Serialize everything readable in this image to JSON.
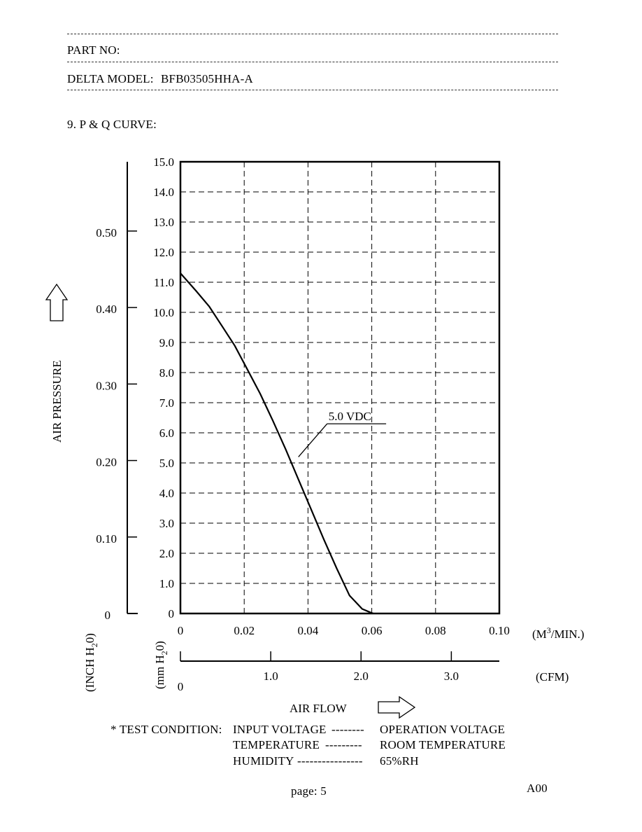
{
  "header": {
    "part_no_label": "PART NO:",
    "model_label": "DELTA MODEL:",
    "model_value": "BFB03505HHA-A",
    "section_title": "9. P & Q CURVE:"
  },
  "chart_data": {
    "type": "line",
    "title": "",
    "xlabel": "AIR FLOW",
    "ylabel": "AIR PRESSURE",
    "x_unit": "(M³/MIN.)",
    "x_unit_parts": [
      "(M",
      "3",
      "/MIN.)"
    ],
    "x2_unit": "(CFM)",
    "y_unit_inch": "(INCH H₂0)",
    "y_unit_inch_parts": [
      "(INCH H",
      "2",
      "0)"
    ],
    "y_unit_mm": "(mm H₂0)",
    "y_unit_mm_parts": [
      "(mm H",
      "2",
      "0)"
    ],
    "xlim": [
      0,
      0.1
    ],
    "ylim": [
      0,
      15.0
    ],
    "grid": true,
    "x_ticks": [
      "0",
      "0.02",
      "0.04",
      "0.06",
      "0.08",
      "0.10"
    ],
    "y_ticks": [
      "0",
      "1.0",
      "2.0",
      "3.0",
      "4.0",
      "5.0",
      "6.0",
      "7.0",
      "8.0",
      "9.0",
      "10.0",
      "11.0",
      "12.0",
      "13.0",
      "14.0",
      "15.0"
    ],
    "y_ticks_inch": [
      {
        "label": "0",
        "value": 0
      },
      {
        "label": "0.10",
        "value": 0.1
      },
      {
        "label": "0.20",
        "value": 0.2
      },
      {
        "label": "0.30",
        "value": 0.3
      },
      {
        "label": "0.40",
        "value": 0.4
      },
      {
        "label": "0.50",
        "value": 0.5
      }
    ],
    "x_ticks_cfm": [
      {
        "label": "0",
        "value": 0
      },
      {
        "label": "1.0",
        "value": 1.0
      },
      {
        "label": "2.0",
        "value": 2.0
      },
      {
        "label": "3.0",
        "value": 3.0
      }
    ],
    "series": [
      {
        "name": "5.0 VDC",
        "x": [
          0,
          0.005,
          0.009,
          0.013,
          0.017,
          0.021,
          0.025,
          0.029,
          0.033,
          0.037,
          0.041,
          0.045,
          0.049,
          0.053,
          0.057,
          0.0595,
          0.0605
        ],
        "y": [
          11.3,
          10.7,
          10.2,
          9.55,
          8.9,
          8.1,
          7.3,
          6.4,
          5.45,
          4.45,
          3.45,
          2.45,
          1.5,
          0.6,
          0.15,
          0.04,
          0
        ]
      }
    ]
  },
  "test_condition": {
    "label": "* TEST CONDITION:",
    "rows": [
      {
        "name": "INPUT VOLTAGE",
        "leader": "--------",
        "value": "OPERATION VOLTAGE"
      },
      {
        "name": "TEMPERATURE",
        "leader": "---------",
        "value": "ROOM TEMPERATURE"
      },
      {
        "name": "HUMIDITY",
        "leader": "----------------",
        "value": "65%RH"
      }
    ]
  },
  "footer": {
    "page": "page: 5",
    "revision": "A00"
  }
}
